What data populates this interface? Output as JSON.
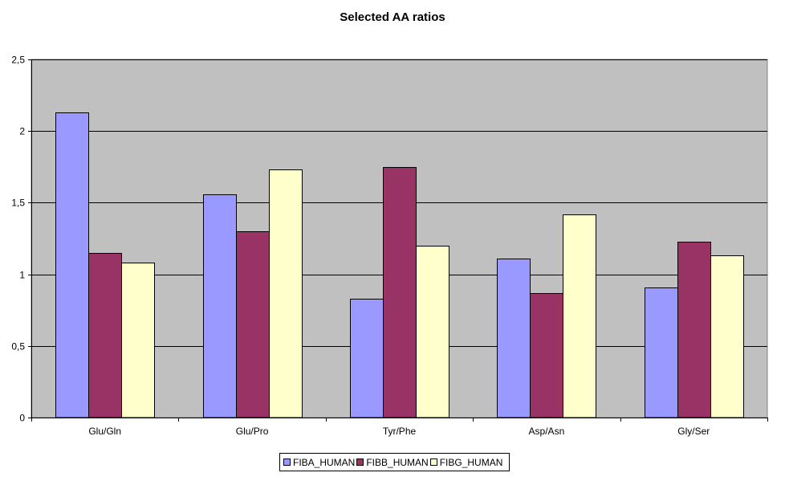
{
  "chart_data": {
    "type": "bar",
    "title": "Selected AA ratios",
    "xlabel": "",
    "ylabel": "",
    "categories": [
      "Glu/Gln",
      "Glu/Pro",
      "Tyr/Phe",
      "Asp/Asn",
      "Gly/Ser"
    ],
    "series": [
      {
        "name": "FIBA_HUMAN",
        "color": "#9999ff",
        "values": [
          2.13,
          1.56,
          0.83,
          1.11,
          0.91
        ]
      },
      {
        "name": "FIBB_HUMAN",
        "color": "#993366",
        "values": [
          1.15,
          1.3,
          1.75,
          0.87,
          1.23
        ]
      },
      {
        "name": "FIBG_HUMAN",
        "color": "#ffffcc",
        "values": [
          1.08,
          1.73,
          1.2,
          1.42,
          1.13
        ]
      }
    ],
    "ylim": [
      0,
      2.5
    ],
    "yticks": [
      "0",
      "0,5",
      "1",
      "1,5",
      "2",
      "2,5"
    ],
    "grid": true,
    "plot_background": "#c0c0c0",
    "legend_position": "bottom"
  }
}
